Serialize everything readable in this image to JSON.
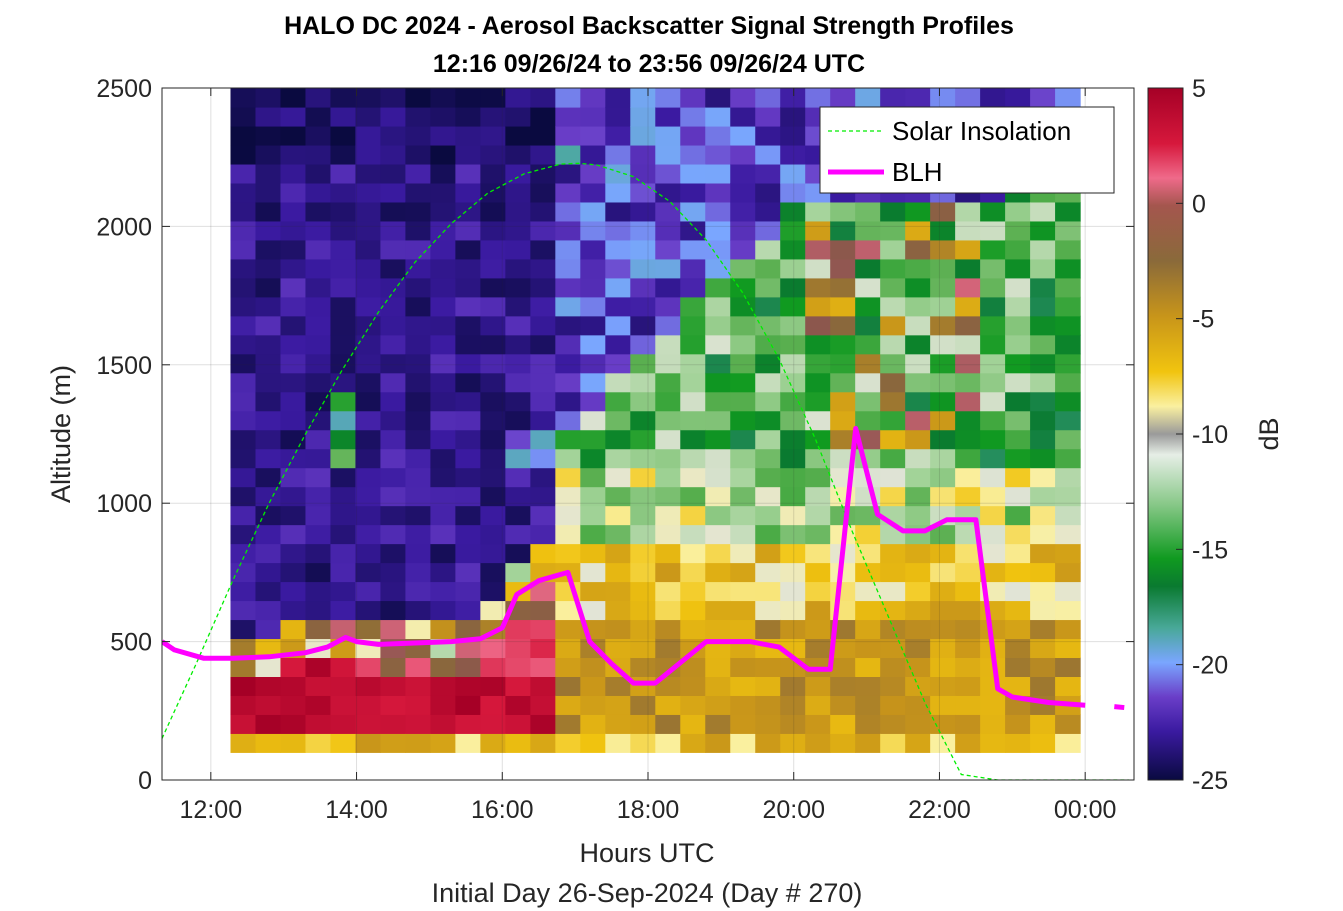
{
  "chart_data": {
    "type": "heatmap",
    "title": "HALO DC 2024 - Aerosol Backscatter Signal Strength Profiles",
    "subtitle": "12:16 09/26/24 to 23:56 09/26/24  UTC",
    "xlabel": "Hours UTC",
    "xlabel2": "Initial Day 26-Sep-2024 (Day # 270)",
    "ylabel": "Altitude (m)",
    "colorbar_label": "dB",
    "xlim": [
      11.33,
      24.67
    ],
    "ylim": [
      0,
      2500
    ],
    "clim": [
      -25,
      5
    ],
    "xticks": [
      12,
      14,
      16,
      18,
      20,
      22,
      24
    ],
    "xtick_labels": [
      "12:00",
      "14:00",
      "16:00",
      "18:00",
      "20:00",
      "22:00",
      "00:00"
    ],
    "yticks": [
      0,
      500,
      1000,
      1500,
      2000,
      2500
    ],
    "ytick_labels": [
      "0",
      "500",
      "1000",
      "1500",
      "2000",
      "2500"
    ],
    "cticks": [
      5,
      0,
      -5,
      -10,
      -15,
      -20,
      -25
    ],
    "ctick_labels": [
      "5",
      "0",
      "-5",
      "-10",
      "-15",
      "-20",
      "-25"
    ],
    "grid": true,
    "legend_position": "top-right",
    "heatmap": {
      "x_start": 12.27,
      "x_end": 23.93,
      "y_start": 100,
      "y_end": 2500,
      "columns": 34,
      "rows": 35
    },
    "series": [
      {
        "name": "Solar Insolation",
        "color": "#00ee00",
        "style": "dashed",
        "x": [
          11.33,
          11.8,
          12.3,
          12.8,
          13.3,
          13.8,
          14.3,
          14.8,
          15.3,
          15.8,
          16.3,
          16.8,
          17.05,
          17.3,
          17.8,
          18.3,
          18.8,
          19.3,
          19.8,
          20.3,
          20.8,
          21.3,
          21.8,
          22.3,
          22.8,
          23.1,
          23.5,
          24.0,
          24.6
        ],
        "y": [
          150,
          420,
          720,
          1000,
          1250,
          1480,
          1690,
          1870,
          2010,
          2120,
          2190,
          2225,
          2228,
          2222,
          2180,
          2090,
          1950,
          1760,
          1520,
          1230,
          900,
          590,
          280,
          20,
          0,
          0,
          0,
          0,
          0
        ]
      },
      {
        "name": "BLH",
        "color": "#ff00ff",
        "style": "solid",
        "x": [
          11.33,
          11.5,
          11.9,
          12.3,
          12.8,
          13.3,
          13.6,
          13.85,
          14.0,
          14.3,
          14.8,
          15.3,
          15.7,
          16.0,
          16.2,
          16.5,
          16.9,
          17.2,
          17.5,
          17.8,
          18.1,
          18.8,
          19.4,
          19.8,
          20.2,
          20.5,
          20.85,
          21.15,
          21.5,
          21.8,
          22.1,
          22.5,
          22.8,
          23.0,
          23.5,
          24.0,
          24.4,
          24.6
        ],
        "y": [
          500,
          470,
          440,
          440,
          445,
          460,
          480,
          515,
          500,
          490,
          495,
          500,
          510,
          550,
          670,
          720,
          750,
          500,
          420,
          350,
          350,
          500,
          500,
          480,
          400,
          400,
          1270,
          960,
          900,
          900,
          940,
          940,
          330,
          300,
          280,
          270,
          265,
          260
        ],
        "gap_after_x": 24.0
      }
    ]
  }
}
